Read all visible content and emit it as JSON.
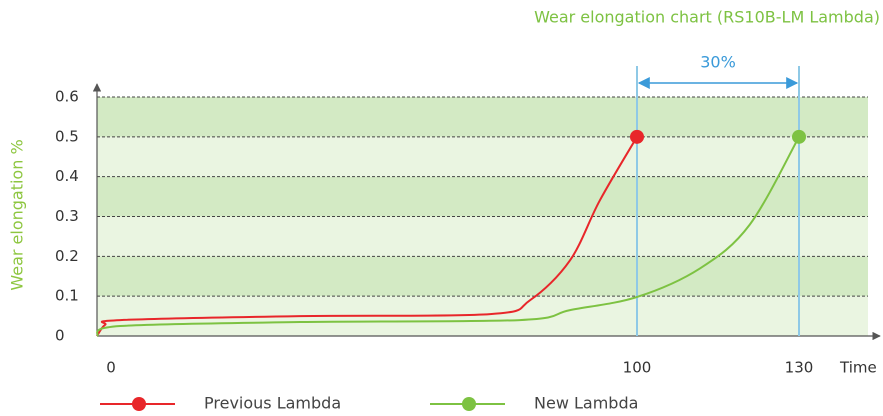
{
  "chart_data": {
    "type": "line",
    "title": "Wear elongation chart (RS10B-LM Lambda)",
    "y_label": "Wear elongation %",
    "x_label": "Time",
    "annotation": "30%",
    "xlim": [
      0,
      145
    ],
    "xticks": [
      0,
      100,
      130
    ],
    "ylim": [
      0,
      0.6
    ],
    "yticks": [
      0,
      0.1,
      0.2,
      0.3,
      0.4,
      0.5,
      0.6
    ],
    "grid": true,
    "series": [
      {
        "name": "Previous Lambda",
        "color": "#e8262a",
        "x": [
          0,
          1.5,
          4.3,
          37.6,
          72.8,
          80.2,
          87.6,
          93.1,
          100
        ],
        "values": [
          0,
          0.028,
          0.04,
          0.05,
          0.055,
          0.09,
          0.19,
          0.34,
          0.5
        ]
      },
      {
        "name": "New Lambda",
        "color": "#7dc242",
        "x": [
          0,
          4.3,
          37.6,
          78.3,
          87.6,
          100,
          111.7,
          120.9,
          130
        ],
        "values": [
          0,
          0.025,
          0.035,
          0.04,
          0.065,
          0.098,
          0.17,
          0.28,
          0.5
        ]
      }
    ]
  }
}
